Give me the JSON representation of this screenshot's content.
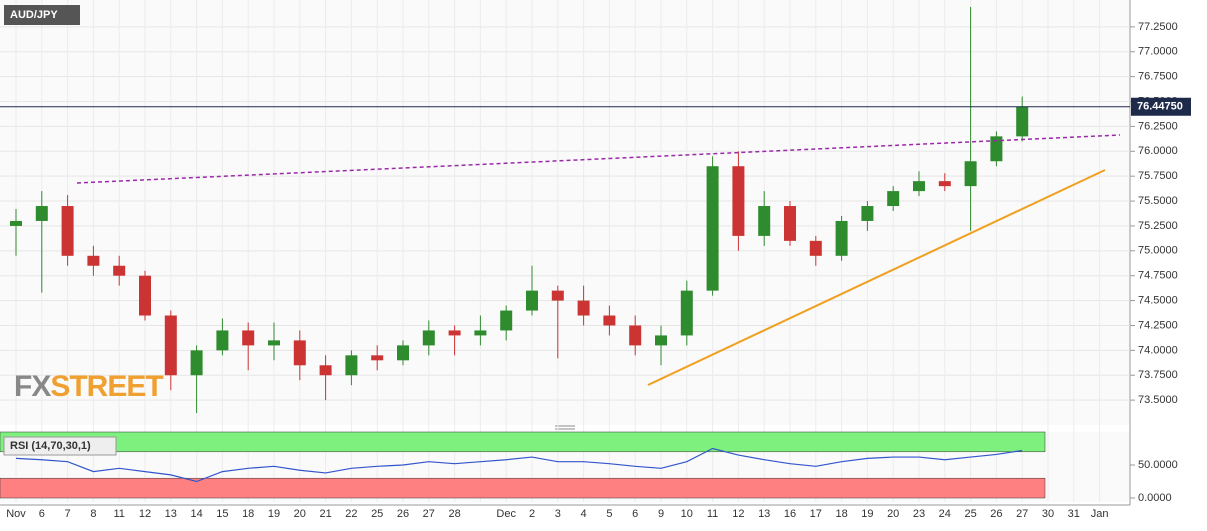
{
  "chart_data": [
    {
      "type": "candlestick",
      "title": "AUD/JPY",
      "categories": [
        "Nov",
        "6",
        "7",
        "8",
        "11",
        "12",
        "13",
        "14",
        "15",
        "18",
        "19",
        "20",
        "21",
        "22",
        "25",
        "26",
        "27",
        "28",
        null,
        "Dec",
        "2",
        "3",
        "4",
        "5",
        "6",
        "9",
        "10",
        "11",
        "12",
        "13",
        "16",
        "17",
        "18",
        "19",
        "20",
        "23",
        "24",
        "25",
        "26",
        "27",
        "30",
        "31",
        "Jan"
      ],
      "candles": [
        [
          75.25,
          75.42,
          74.95,
          75.3
        ],
        [
          75.3,
          75.6,
          74.58,
          75.45
        ],
        [
          75.45,
          75.56,
          74.85,
          74.95
        ],
        [
          74.95,
          75.05,
          74.75,
          74.85
        ],
        [
          74.85,
          74.95,
          74.65,
          74.75
        ],
        [
          74.75,
          74.8,
          74.3,
          74.35
        ],
        [
          74.35,
          74.4,
          73.6,
          73.75
        ],
        [
          73.75,
          74.05,
          73.37,
          74.0
        ],
        [
          74.0,
          74.32,
          73.95,
          74.2
        ],
        [
          74.2,
          74.28,
          73.8,
          74.05
        ],
        [
          74.05,
          74.28,
          73.9,
          74.1
        ],
        [
          74.1,
          74.2,
          73.7,
          73.85
        ],
        [
          73.85,
          73.95,
          73.5,
          73.75
        ],
        [
          73.75,
          74.0,
          73.65,
          73.95
        ],
        [
          73.95,
          74.05,
          73.8,
          73.9
        ],
        [
          73.9,
          74.1,
          73.85,
          74.05
        ],
        [
          74.05,
          74.3,
          73.95,
          74.2
        ],
        [
          74.2,
          74.25,
          73.95,
          74.15
        ],
        [
          74.15,
          74.35,
          74.05,
          74.2
        ],
        [
          74.2,
          74.45,
          74.1,
          74.4
        ],
        [
          74.4,
          74.85,
          74.35,
          74.6
        ],
        [
          74.6,
          74.65,
          73.92,
          74.5
        ],
        [
          74.5,
          74.65,
          74.25,
          74.35
        ],
        [
          74.35,
          74.45,
          74.15,
          74.25
        ],
        [
          74.25,
          74.35,
          73.95,
          74.05
        ],
        [
          74.05,
          74.25,
          73.85,
          74.15
        ],
        [
          74.15,
          74.7,
          74.05,
          74.6
        ],
        [
          74.6,
          75.95,
          74.55,
          75.85
        ],
        [
          75.85,
          76.0,
          75.0,
          75.15
        ],
        [
          75.15,
          75.6,
          75.05,
          75.45
        ],
        [
          75.45,
          75.5,
          75.05,
          75.1
        ],
        [
          75.1,
          75.15,
          74.85,
          74.95
        ],
        [
          74.95,
          75.35,
          74.9,
          75.3
        ],
        [
          75.3,
          75.5,
          75.2,
          75.45
        ],
        [
          75.45,
          75.65,
          75.4,
          75.6
        ],
        [
          75.6,
          75.8,
          75.55,
          75.7
        ],
        [
          75.7,
          75.78,
          75.6,
          75.65
        ],
        [
          75.65,
          77.45,
          75.2,
          75.9
        ],
        [
          75.9,
          76.2,
          75.85,
          76.15
        ],
        [
          76.15,
          76.55,
          76.1,
          76.45
        ],
        null,
        null,
        null
      ],
      "up_color": "#2e8b2e",
      "down_color": "#cc3333",
      "ylim": [
        73.25,
        77.52
      ],
      "yticks": [
        {
          "value": 73.5,
          "label": "73.5000"
        },
        {
          "value": 73.75,
          "label": "73.7500"
        },
        {
          "value": 74,
          "label": "74.0000"
        },
        {
          "value": 74.25,
          "label": "74.2500"
        },
        {
          "value": 74.5,
          "label": "74.5000"
        },
        {
          "value": 74.75,
          "label": "74.7500"
        },
        {
          "value": 75,
          "label": "75.0000"
        },
        {
          "value": 75.25,
          "label": "75.2500"
        },
        {
          "value": 75.5,
          "label": "75.5000"
        },
        {
          "value": 75.75,
          "label": "75.7500"
        },
        {
          "value": 76,
          "label": "76.0000"
        },
        {
          "value": 76.25,
          "label": "76.2500"
        },
        {
          "value": 76.5,
          "label": "76.5000"
        },
        {
          "value": 76.75,
          "label": "76.7500"
        },
        {
          "value": 77,
          "label": "77.0000"
        },
        {
          "value": 77.25,
          "label": "77.2500"
        }
      ],
      "last_price": {
        "value": 76.4475,
        "label": "76.44750"
      },
      "grid": true
    },
    {
      "type": "line",
      "title": "RSI (14,70,30,1)",
      "values": [
        60,
        58,
        55,
        40,
        45,
        40,
        35,
        25,
        40,
        45,
        48,
        42,
        38,
        45,
        48,
        50,
        55,
        52,
        55,
        58,
        62,
        55,
        55,
        52,
        48,
        45,
        55,
        75,
        65,
        58,
        52,
        48,
        55,
        60,
        62,
        62,
        58,
        62,
        66,
        72,
        null,
        null,
        null
      ],
      "color": "#3355cc",
      "ylim": [
        0,
        100
      ],
      "yticks": [
        {
          "value": 0,
          "label": "0.0000"
        },
        {
          "value": 50,
          "label": "50.0000"
        }
      ],
      "bands": [
        [
          70,
          100
        ],
        [
          0,
          30
        ]
      ]
    }
  ],
  "logo": [
    "FX",
    "STREET"
  ]
}
